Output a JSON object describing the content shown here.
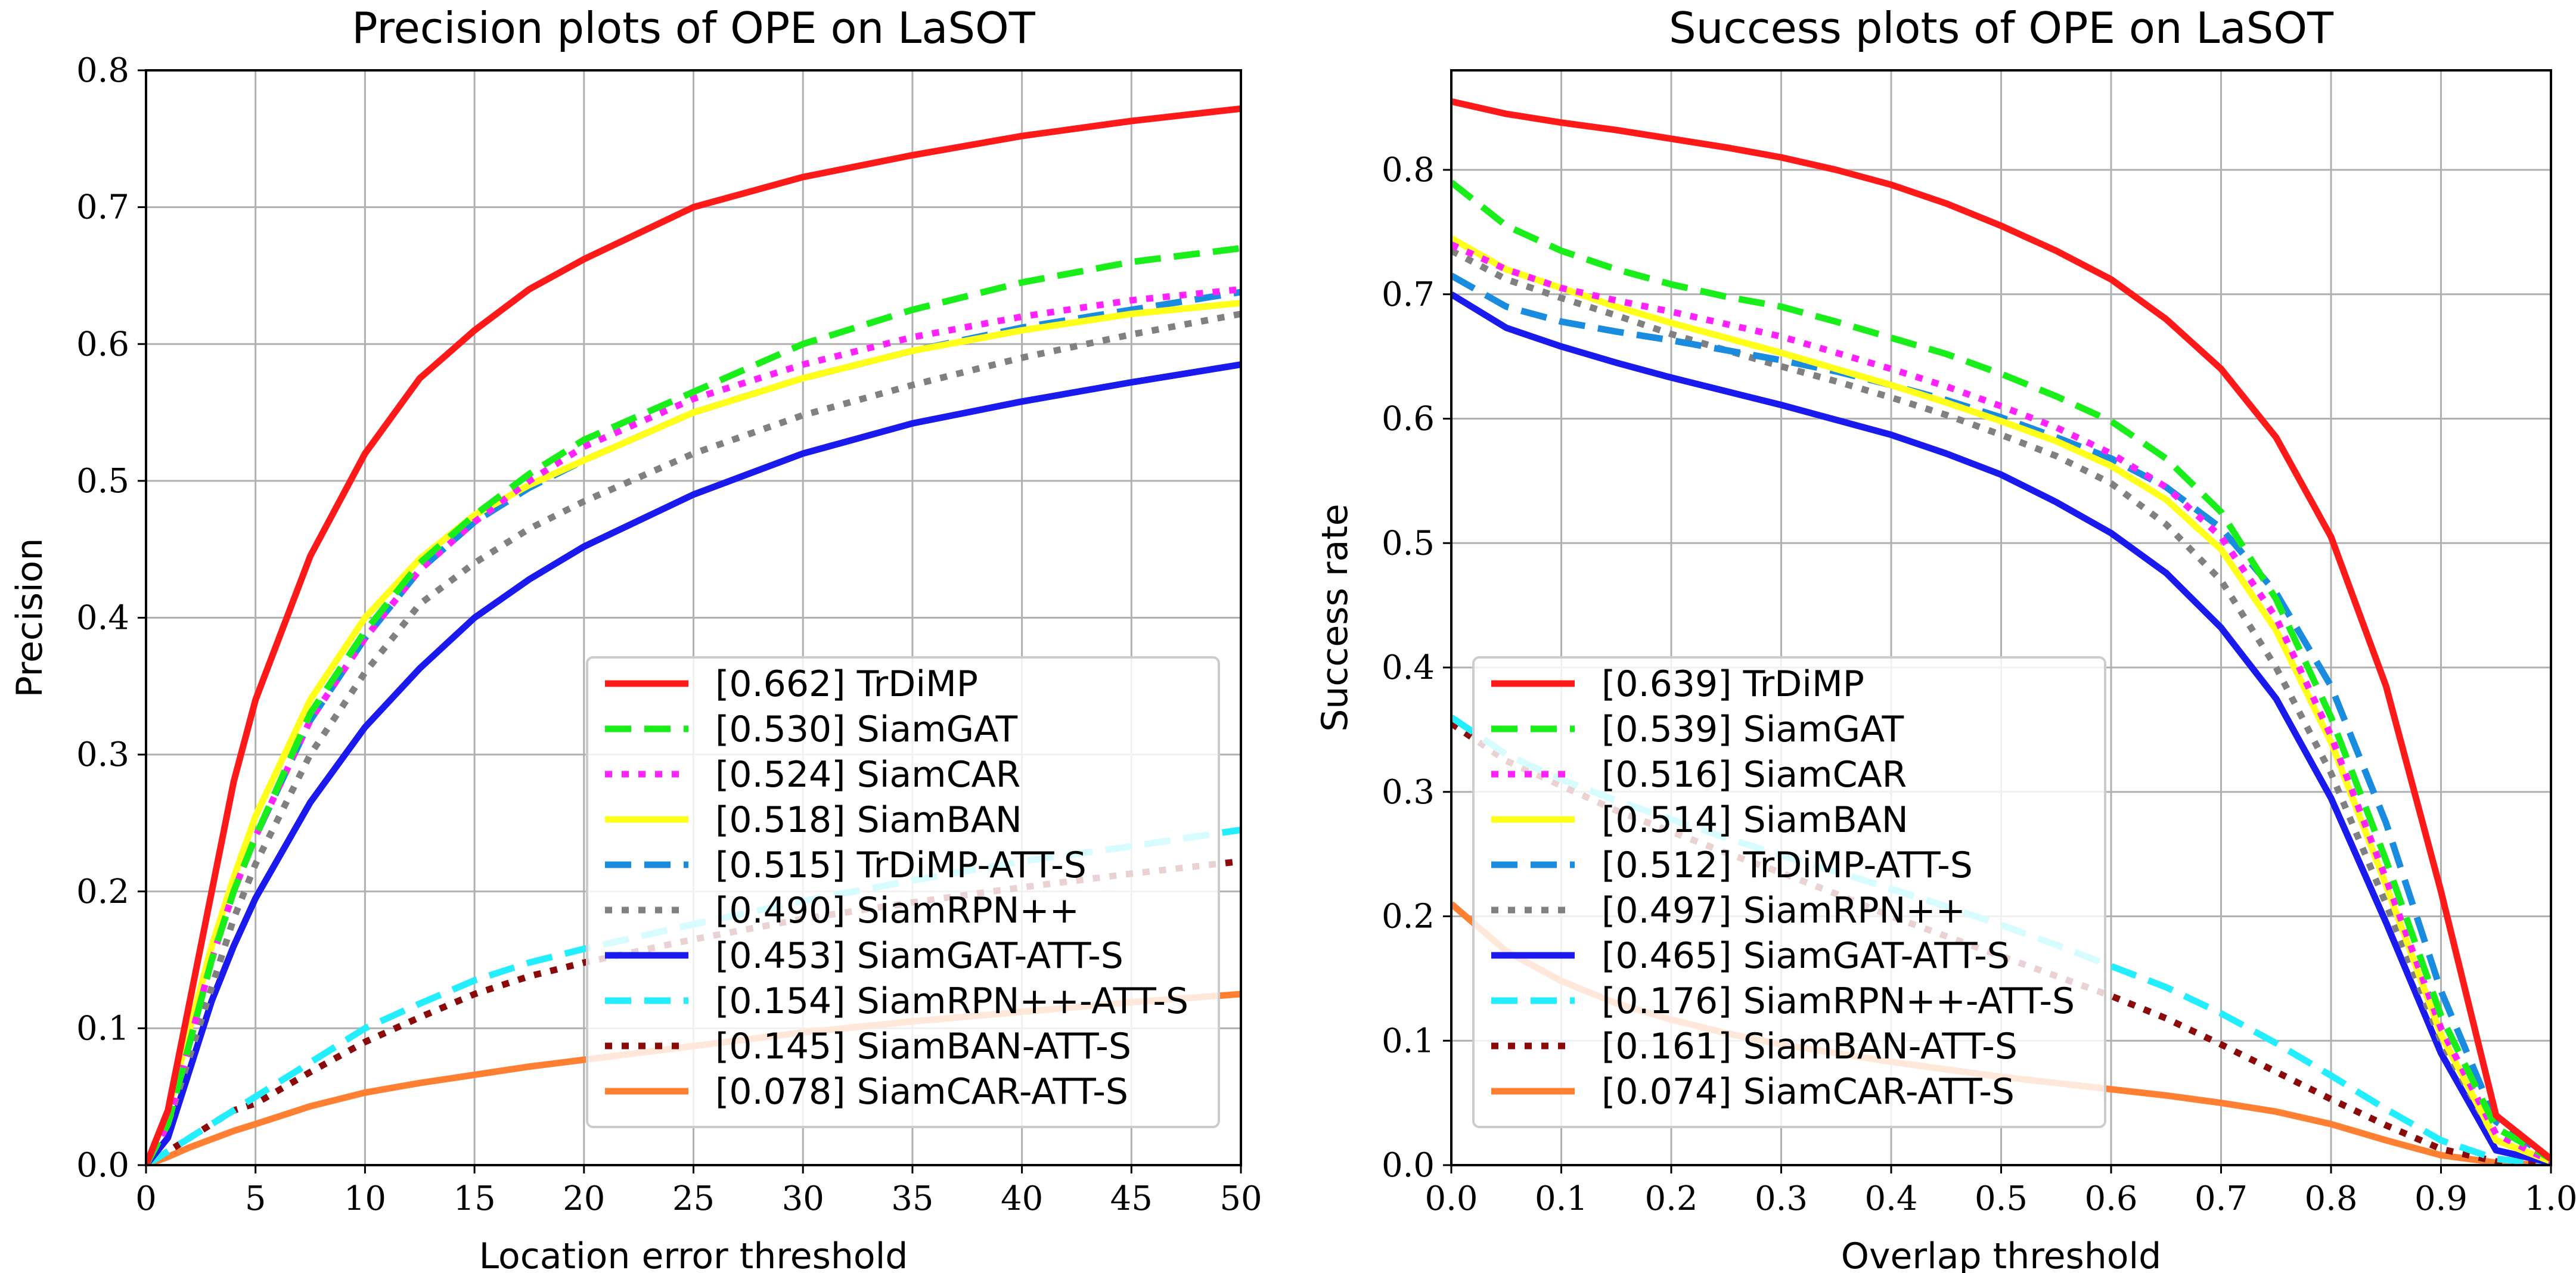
{
  "chart_data": [
    {
      "type": "line",
      "title": "Precision plots of OPE on LaSOT",
      "xlabel": "Location error threshold",
      "ylabel": "Precision",
      "xlim": [
        0,
        50
      ],
      "ylim": [
        0,
        0.8
      ],
      "xticks": [
        "0",
        "5",
        "10",
        "15",
        "20",
        "25",
        "30",
        "35",
        "40",
        "45",
        "50"
      ],
      "yticks": [
        "0.0",
        "0.1",
        "0.2",
        "0.3",
        "0.4",
        "0.5",
        "0.6",
        "0.7",
        "0.8"
      ],
      "grid": true,
      "legend_position": "lower-right",
      "x": [
        0,
        1,
        2,
        3,
        4,
        5,
        7.5,
        10,
        12.5,
        15,
        17.5,
        20,
        25,
        30,
        35,
        40,
        45,
        50
      ],
      "series": [
        {
          "name": "[0.662] TrDiMP",
          "color": "#ff1a1a",
          "dash": "solid",
          "values": [
            0,
            0.04,
            0.12,
            0.2,
            0.28,
            0.34,
            0.445,
            0.52,
            0.575,
            0.61,
            0.64,
            0.662,
            0.7,
            0.722,
            0.738,
            0.752,
            0.763,
            0.772
          ]
        },
        {
          "name": "[0.530] SiamGAT",
          "color": "#1aee1a",
          "dash": "dashed",
          "values": [
            0,
            0.03,
            0.09,
            0.15,
            0.2,
            0.24,
            0.33,
            0.39,
            0.44,
            0.475,
            0.505,
            0.53,
            0.565,
            0.6,
            0.625,
            0.645,
            0.66,
            0.67
          ]
        },
        {
          "name": "[0.524] SiamCAR",
          "color": "#ff22ff",
          "dash": "dotted",
          "values": [
            0,
            0.03,
            0.09,
            0.15,
            0.2,
            0.24,
            0.325,
            0.385,
            0.435,
            0.47,
            0.5,
            0.525,
            0.56,
            0.585,
            0.605,
            0.62,
            0.632,
            0.64
          ]
        },
        {
          "name": "[0.518] SiamBAN",
          "color": "#ffff1a",
          "dash": "solid",
          "values": [
            0,
            0.04,
            0.1,
            0.16,
            0.21,
            0.255,
            0.34,
            0.4,
            0.443,
            0.475,
            0.497,
            0.515,
            0.55,
            0.575,
            0.595,
            0.61,
            0.622,
            0.63
          ]
        },
        {
          "name": "[0.515] TrDiMP-ATT-S",
          "color": "#1a8ce0",
          "dash": "dashed",
          "values": [
            0,
            0.03,
            0.09,
            0.15,
            0.2,
            0.24,
            0.325,
            0.385,
            0.435,
            0.47,
            0.495,
            0.515,
            0.55,
            0.575,
            0.595,
            0.612,
            0.625,
            0.638
          ]
        },
        {
          "name": "[0.490] SiamRPN++",
          "color": "#808080",
          "dash": "dotted",
          "values": [
            0,
            0.03,
            0.08,
            0.13,
            0.18,
            0.22,
            0.3,
            0.36,
            0.41,
            0.44,
            0.465,
            0.485,
            0.52,
            0.548,
            0.57,
            0.59,
            0.607,
            0.622
          ]
        },
        {
          "name": "[0.453] SiamGAT-ATT-S",
          "color": "#1a1aee",
          "dash": "solid",
          "values": [
            0,
            0.02,
            0.07,
            0.12,
            0.16,
            0.195,
            0.265,
            0.32,
            0.363,
            0.4,
            0.428,
            0.452,
            0.49,
            0.52,
            0.542,
            0.558,
            0.572,
            0.585
          ]
        },
        {
          "name": "[0.154] SiamRPN++-ATT-S",
          "color": "#22eeff",
          "dash": "dashed",
          "values": [
            0,
            0.01,
            0.02,
            0.03,
            0.04,
            0.05,
            0.075,
            0.1,
            0.118,
            0.135,
            0.148,
            0.158,
            0.176,
            0.193,
            0.208,
            0.222,
            0.233,
            0.245
          ]
        },
        {
          "name": "[0.145] SiamBAN-ATT-S",
          "color": "#8a0a0a",
          "dash": "dotted",
          "values": [
            0,
            0.01,
            0.02,
            0.03,
            0.04,
            0.045,
            0.068,
            0.09,
            0.108,
            0.125,
            0.138,
            0.148,
            0.165,
            0.18,
            0.192,
            0.203,
            0.213,
            0.222
          ]
        },
        {
          "name": "[0.078] SiamCAR-ATT-S",
          "color": "#ff8033",
          "dash": "solid",
          "values": [
            0,
            0.006,
            0.013,
            0.019,
            0.025,
            0.03,
            0.043,
            0.053,
            0.06,
            0.066,
            0.072,
            0.077,
            0.087,
            0.097,
            0.105,
            0.112,
            0.119,
            0.125
          ]
        }
      ]
    },
    {
      "type": "line",
      "title": "Success plots of OPE on LaSOT",
      "xlabel": "Overlap threshold",
      "ylabel": "Success rate",
      "xlim": [
        0,
        1
      ],
      "ylim": [
        0,
        0.88
      ],
      "xticks": [
        "0.0",
        "0.1",
        "0.2",
        "0.3",
        "0.4",
        "0.5",
        "0.6",
        "0.7",
        "0.8",
        "0.9",
        "1.0"
      ],
      "yticks": [
        "0.0",
        "0.1",
        "0.2",
        "0.3",
        "0.4",
        "0.5",
        "0.6",
        "0.7",
        "0.8"
      ],
      "grid": true,
      "legend_position": "lower-left",
      "x": [
        0,
        0.05,
        0.1,
        0.15,
        0.2,
        0.25,
        0.3,
        0.35,
        0.4,
        0.45,
        0.5,
        0.55,
        0.6,
        0.65,
        0.7,
        0.75,
        0.8,
        0.85,
        0.9,
        0.95,
        1.0
      ],
      "series": [
        {
          "name": "[0.639] TrDiMP",
          "color": "#ff1a1a",
          "dash": "solid",
          "values": [
            0.855,
            0.845,
            0.838,
            0.832,
            0.825,
            0.818,
            0.81,
            0.8,
            0.788,
            0.773,
            0.755,
            0.735,
            0.712,
            0.68,
            0.64,
            0.585,
            0.505,
            0.385,
            0.22,
            0.04,
            0.005
          ]
        },
        {
          "name": "[0.539] SiamGAT",
          "color": "#1aee1a",
          "dash": "dashed",
          "values": [
            0.79,
            0.755,
            0.735,
            0.72,
            0.708,
            0.698,
            0.69,
            0.678,
            0.665,
            0.652,
            0.636,
            0.618,
            0.598,
            0.568,
            0.525,
            0.455,
            0.36,
            0.245,
            0.12,
            0.03,
            0.005
          ]
        },
        {
          "name": "[0.516] SiamCAR",
          "color": "#ff22ff",
          "dash": "dotted",
          "values": [
            0.74,
            0.72,
            0.705,
            0.695,
            0.686,
            0.676,
            0.666,
            0.653,
            0.64,
            0.626,
            0.61,
            0.593,
            0.572,
            0.545,
            0.505,
            0.44,
            0.345,
            0.23,
            0.11,
            0.025,
            0.003
          ]
        },
        {
          "name": "[0.514] SiamBAN",
          "color": "#ffff1a",
          "dash": "solid",
          "values": [
            0.745,
            0.72,
            0.705,
            0.69,
            0.677,
            0.665,
            0.653,
            0.64,
            0.627,
            0.613,
            0.598,
            0.582,
            0.562,
            0.535,
            0.495,
            0.43,
            0.34,
            0.225,
            0.105,
            0.02,
            0.003
          ]
        },
        {
          "name": "[0.512] TrDiMP-ATT-S",
          "color": "#1a8ce0",
          "dash": "dashed",
          "values": [
            0.715,
            0.69,
            0.678,
            0.67,
            0.663,
            0.655,
            0.647,
            0.638,
            0.627,
            0.615,
            0.601,
            0.585,
            0.568,
            0.545,
            0.512,
            0.46,
            0.385,
            0.275,
            0.14,
            0.035,
            0.005
          ]
        },
        {
          "name": "[0.497] SiamRPN++",
          "color": "#808080",
          "dash": "dotted",
          "values": [
            0.735,
            0.712,
            0.697,
            0.683,
            0.668,
            0.655,
            0.642,
            0.63,
            0.617,
            0.603,
            0.587,
            0.57,
            0.548,
            0.515,
            0.47,
            0.4,
            0.315,
            0.21,
            0.1,
            0.02,
            0.003
          ]
        },
        {
          "name": "[0.465] SiamGAT-ATT-S",
          "color": "#1a1aee",
          "dash": "solid",
          "values": [
            0.7,
            0.673,
            0.658,
            0.645,
            0.633,
            0.622,
            0.611,
            0.599,
            0.587,
            0.572,
            0.555,
            0.533,
            0.508,
            0.476,
            0.432,
            0.375,
            0.295,
            0.195,
            0.09,
            0.012,
            0.002
          ]
        },
        {
          "name": "[0.176] SiamRPN++-ATT-S",
          "color": "#22eeff",
          "dash": "dashed",
          "values": [
            0.36,
            0.33,
            0.31,
            0.293,
            0.278,
            0.263,
            0.249,
            0.236,
            0.222,
            0.208,
            0.193,
            0.177,
            0.16,
            0.143,
            0.122,
            0.098,
            0.072,
            0.045,
            0.02,
            0.005,
            0.001
          ]
        },
        {
          "name": "[0.161] SiamBAN-ATT-S",
          "color": "#8a0a0a",
          "dash": "dotted",
          "values": [
            0.355,
            0.325,
            0.305,
            0.285,
            0.268,
            0.251,
            0.235,
            0.218,
            0.2,
            0.184,
            0.168,
            0.152,
            0.136,
            0.118,
            0.097,
            0.075,
            0.053,
            0.032,
            0.013,
            0.003,
            0.001
          ]
        },
        {
          "name": "[0.074] SiamCAR-ATT-S",
          "color": "#ff8033",
          "dash": "solid",
          "values": [
            0.21,
            0.172,
            0.148,
            0.13,
            0.117,
            0.106,
            0.097,
            0.09,
            0.083,
            0.077,
            0.071,
            0.066,
            0.061,
            0.056,
            0.05,
            0.043,
            0.033,
            0.02,
            0.008,
            0.002,
            0.0
          ]
        }
      ]
    }
  ]
}
